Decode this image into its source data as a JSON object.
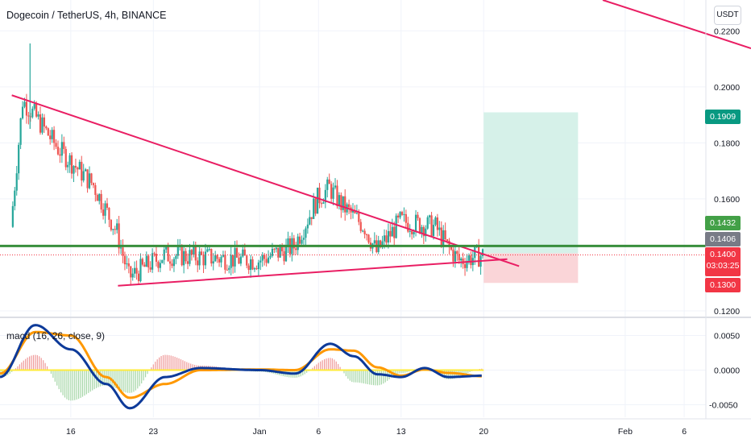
{
  "header": {
    "title": "Dogecoin / TetherUS, 4h, BINANCE",
    "currency": "USDT",
    "indicator": "macd (16, 26, close, 9)"
  },
  "price_axis": {
    "ticks": [
      "0.2200",
      "0.2000",
      "0.1800",
      "0.1600",
      "0.1200"
    ],
    "tick_values": [
      0.22,
      0.2,
      0.18,
      0.16,
      0.12
    ]
  },
  "macd_axis": {
    "ticks": [
      "0.0050",
      "0.0000",
      "-0.0050"
    ],
    "tick_values": [
      0.005,
      0.0,
      -0.005
    ]
  },
  "time_axis": {
    "labels": [
      "16",
      "23",
      "Jan",
      "6",
      "13",
      "20",
      "Feb",
      "6"
    ]
  },
  "tags": {
    "take_profit": "0.1909",
    "green_level": "0.1432",
    "grey_level": "0.1406",
    "last_price": "0.1400",
    "countdown": "03:03:25",
    "stop_loss": "0.1300"
  },
  "colors": {
    "up": "#26a69a",
    "down": "#ef5350",
    "trendline": "#e91e63",
    "support": "#388e3c",
    "macd_line": "#0d3a99",
    "signal_line": "#ff9800",
    "profit_zone": "#d1efe7",
    "loss_zone": "#f9d0d4",
    "tp_tag": "#089981",
    "green_tag": "#43a047",
    "grey_tag": "#787b86",
    "red_tag": "#f23645"
  },
  "chart_data": {
    "type": "candlestick",
    "timeframe": "4h",
    "price_range": [
      0.118,
      0.231
    ],
    "macd_range": [
      -0.0068,
      0.0075
    ],
    "key_points_price": [
      {
        "date": "Dec 11",
        "value": 0.15
      },
      {
        "date": "Dec 12",
        "value": 0.195
      },
      {
        "date": "Dec 13",
        "value": 0.19
      },
      {
        "date": "Dec 15",
        "value": 0.178
      },
      {
        "date": "Dec 18",
        "value": 0.165
      },
      {
        "date": "Dec 20",
        "value": 0.148
      },
      {
        "date": "Dec 21",
        "value": 0.132
      },
      {
        "date": "Dec 24",
        "value": 0.14
      },
      {
        "date": "Jan 1",
        "value": 0.138
      },
      {
        "date": "Jan 4",
        "value": 0.143
      },
      {
        "date": "Jan 6",
        "value": 0.16
      },
      {
        "date": "Jan 7",
        "value": 0.164
      },
      {
        "date": "Jan 8",
        "value": 0.158
      },
      {
        "date": "Jan 10",
        "value": 0.15
      },
      {
        "date": "Jan 11",
        "value": 0.141
      },
      {
        "date": "Jan 13",
        "value": 0.152
      },
      {
        "date": "Jan 16",
        "value": 0.15
      },
      {
        "date": "Jan 17",
        "value": 0.143
      },
      {
        "date": "Jan 18",
        "value": 0.138
      },
      {
        "date": "Jan 20",
        "value": 0.14
      }
    ],
    "trendlines": [
      {
        "name": "descending resistance",
        "from": {
          "date": "Dec 11",
          "value": 0.197
        },
        "to": {
          "date": "Jan 23",
          "value": 0.136
        }
      },
      {
        "name": "ascending support",
        "from": {
          "date": "Dec 20",
          "value": 0.129
        },
        "to": {
          "date": "Jan 22",
          "value": 0.1385
        }
      }
    ],
    "levels": [
      {
        "name": "support",
        "value": 0.1432
      },
      {
        "name": "last",
        "value": 0.14
      }
    ],
    "position": {
      "entry": 0.1406,
      "take_profit": 0.1909,
      "stop_loss": 0.13,
      "from_date": "Jan 20",
      "to_date": "Jan 28"
    },
    "macd_key_points": [
      {
        "date": "Dec 10",
        "macd": -0.001,
        "signal": -0.0005
      },
      {
        "date": "Dec 13",
        "macd": 0.0065,
        "signal": 0.0055
      },
      {
        "date": "Dec 16",
        "macd": 0.003,
        "signal": 0.005
      },
      {
        "date": "Dec 19",
        "macd": -0.002,
        "signal": -0.001
      },
      {
        "date": "Dec 21",
        "macd": -0.0055,
        "signal": -0.004
      },
      {
        "date": "Dec 24",
        "macd": -0.001,
        "signal": -0.002
      },
      {
        "date": "Dec 27",
        "macd": 0.0003,
        "signal": 0.0
      },
      {
        "date": "Jan 1",
        "macd": 0.0,
        "signal": 0.0001
      },
      {
        "date": "Jan 4",
        "macd": -0.0005,
        "signal": 0.0
      },
      {
        "date": "Jan 7",
        "macd": 0.0038,
        "signal": 0.003
      },
      {
        "date": "Jan 9",
        "macd": 0.002,
        "signal": 0.0028
      },
      {
        "date": "Jan 11",
        "macd": -0.0006,
        "signal": 0.0004
      },
      {
        "date": "Jan 13",
        "macd": -0.001,
        "signal": -0.0008
      },
      {
        "date": "Jan 15",
        "macd": 0.0003,
        "signal": 0.0001
      },
      {
        "date": "Jan 17",
        "macd": -0.001,
        "signal": -0.0004
      },
      {
        "date": "Jan 20",
        "macd": -0.0008,
        "signal": -0.0009
      }
    ]
  }
}
